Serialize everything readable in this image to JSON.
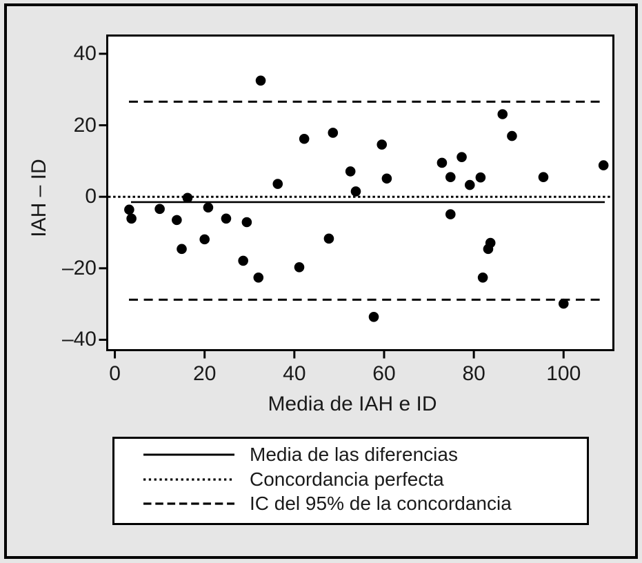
{
  "figure": {
    "background_color": "#e6e6e6",
    "plot_background_color": "#ffffff",
    "line_color": "#000000",
    "point_color": "#000000"
  },
  "chart_data": {
    "type": "scatter",
    "title": "",
    "xlabel": "Media de IAH e ID",
    "ylabel": "IAH – ID",
    "xlim": [
      -1.7,
      111.1
    ],
    "ylim": [
      -42.9,
      45.1
    ],
    "grid": false,
    "legend_position": "below",
    "x_ticks": [
      {
        "value": 0,
        "label": "0"
      },
      {
        "value": 20,
        "label": "20"
      },
      {
        "value": 40,
        "label": "40"
      },
      {
        "value": 60,
        "label": "60"
      },
      {
        "value": 80,
        "label": "80"
      },
      {
        "value": 100,
        "label": "100"
      }
    ],
    "y_ticks": [
      {
        "value": 40,
        "label": "40"
      },
      {
        "value": 20,
        "label": "20"
      },
      {
        "value": 0,
        "label": "0"
      },
      {
        "value": -20,
        "label": "–20"
      },
      {
        "value": -40,
        "label": "–40"
      }
    ],
    "points": [
      [
        3.2,
        -3.6
      ],
      [
        3.7,
        -6.1
      ],
      [
        10.0,
        -3.4
      ],
      [
        13.8,
        -6.5
      ],
      [
        14.9,
        -14.6
      ],
      [
        16.2,
        -0.3
      ],
      [
        20.0,
        -11.9
      ],
      [
        20.8,
        -3.0
      ],
      [
        24.8,
        -6.1
      ],
      [
        29.4,
        -7.1
      ],
      [
        28.6,
        -17.9
      ],
      [
        32.5,
        32.5
      ],
      [
        32.0,
        -22.6
      ],
      [
        36.3,
        3.6
      ],
      [
        41.1,
        -19.7
      ],
      [
        42.2,
        16.2
      ],
      [
        47.7,
        -11.7
      ],
      [
        48.6,
        17.9
      ],
      [
        52.5,
        7.1
      ],
      [
        53.7,
        1.5
      ],
      [
        59.5,
        14.6
      ],
      [
        60.6,
        5.1
      ],
      [
        57.7,
        -33.6
      ],
      [
        72.9,
        9.5
      ],
      [
        74.8,
        5.5
      ],
      [
        74.8,
        -4.9
      ],
      [
        77.3,
        11.1
      ],
      [
        79.1,
        3.3
      ],
      [
        81.5,
        5.4
      ],
      [
        82.0,
        -22.6
      ],
      [
        83.7,
        -12.9
      ],
      [
        83.2,
        -14.6
      ],
      [
        86.4,
        23.1
      ],
      [
        88.5,
        17.0
      ],
      [
        95.5,
        5.5
      ],
      [
        100.0,
        -29.9
      ],
      [
        108.9,
        8.8
      ]
    ],
    "reference_lines": {
      "mean_difference": {
        "value": -1.5,
        "style": "solid"
      },
      "perfect_agreement": {
        "value": 0,
        "style": "dotted"
      },
      "upper_limit": {
        "value": 26.6,
        "style": "dashed"
      },
      "lower_limit": {
        "value": -28.8,
        "style": "dashed"
      }
    },
    "legend": {
      "entries": [
        {
          "style": "solid",
          "label": "Media de las diferencias"
        },
        {
          "style": "dotted",
          "label": "Concordancia perfecta"
        },
        {
          "style": "dashed",
          "label": "IC del 95% de la concordancia"
        }
      ]
    }
  }
}
